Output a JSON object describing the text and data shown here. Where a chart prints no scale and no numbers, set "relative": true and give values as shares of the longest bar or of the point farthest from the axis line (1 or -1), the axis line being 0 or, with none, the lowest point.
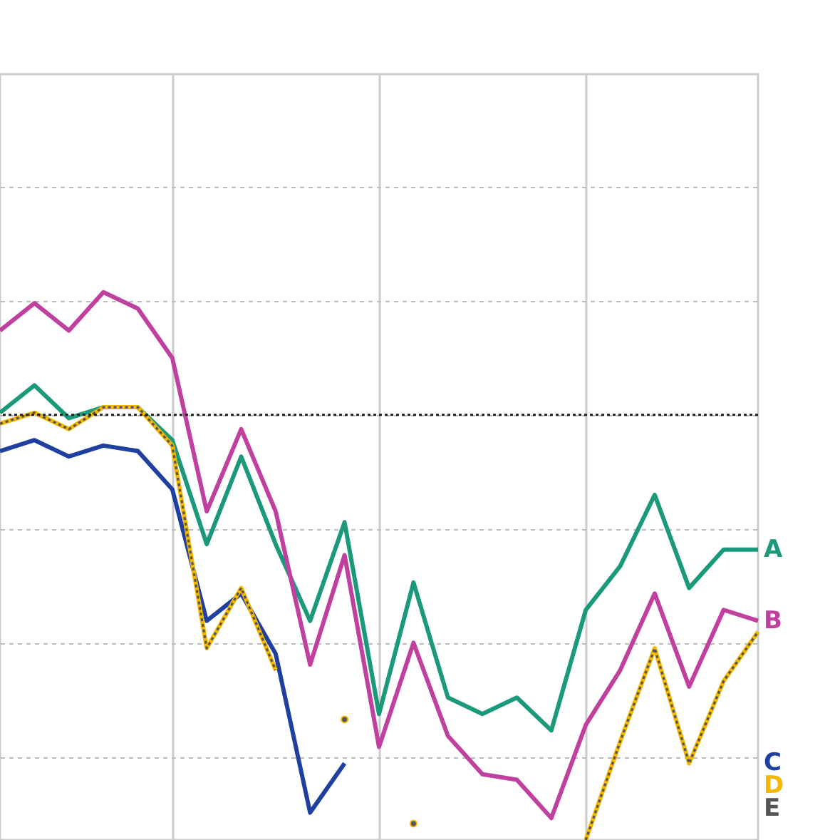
{
  "chart_data": {
    "type": "line",
    "relative": true,
    "categories": [
      null,
      null,
      null,
      null,
      null,
      null,
      null,
      null,
      null,
      null,
      null,
      null,
      null,
      null,
      null,
      null,
      null,
      null,
      null,
      null,
      null,
      null,
      null
    ],
    "grid": true,
    "legend": false,
    "marker": "none",
    "line_style": "solid",
    "series": [
      {
        "name": "A",
        "color": "#1a9a7a",
        "values": [
          0.78,
          0.83,
          0.77,
          0.79,
          0.79,
          0.73,
          0.54,
          0.7,
          0.54,
          0.4,
          0.58,
          0.23,
          0.47,
          0.26,
          0.23,
          0.26,
          0.2,
          0.42,
          0.5,
          0.63,
          0.46,
          0.53,
          0.53
        ]
      },
      {
        "name": "B",
        "color": "#c040a0",
        "values": [
          0.93,
          0.98,
          0.93,
          1.0,
          0.97,
          0.88,
          0.6,
          0.75,
          0.6,
          0.32,
          0.52,
          0.17,
          0.36,
          0.19,
          0.12,
          0.11,
          0.04,
          0.21,
          0.31,
          0.45,
          0.28,
          0.42,
          0.4
        ]
      },
      {
        "name": "C",
        "color": "#2040a0",
        "values": [
          0.71,
          0.73,
          0.7,
          0.72,
          0.71,
          0.64,
          0.4,
          0.45,
          0.34,
          0.05,
          0.14,
          null,
          null,
          null,
          null,
          null,
          null,
          null,
          null,
          null,
          null,
          null,
          null
        ]
      },
      {
        "name": "D",
        "color": "#f5b800",
        "values": [
          0.76,
          0.78,
          0.75,
          0.79,
          0.79,
          0.72,
          0.35,
          0.46,
          0.31,
          null,
          0.22,
          null,
          0.03,
          null,
          null,
          null,
          null,
          0.0,
          0.18,
          0.35,
          0.14,
          0.29,
          0.38
        ]
      },
      {
        "name": "E",
        "color": "#555555",
        "line_style": "dotted",
        "values": [
          0.76,
          0.78,
          0.75,
          0.79,
          0.79,
          0.72,
          0.35,
          0.46,
          0.31,
          null,
          0.22,
          null,
          0.03,
          null,
          null,
          null,
          null,
          0.0,
          0.18,
          0.35,
          0.14,
          0.29,
          0.38
        ]
      }
    ],
    "ref_lines": [
      {
        "axis": "y",
        "value": 0.776,
        "color": "#222222",
        "line_style": "dotted"
      }
    ]
  }
}
